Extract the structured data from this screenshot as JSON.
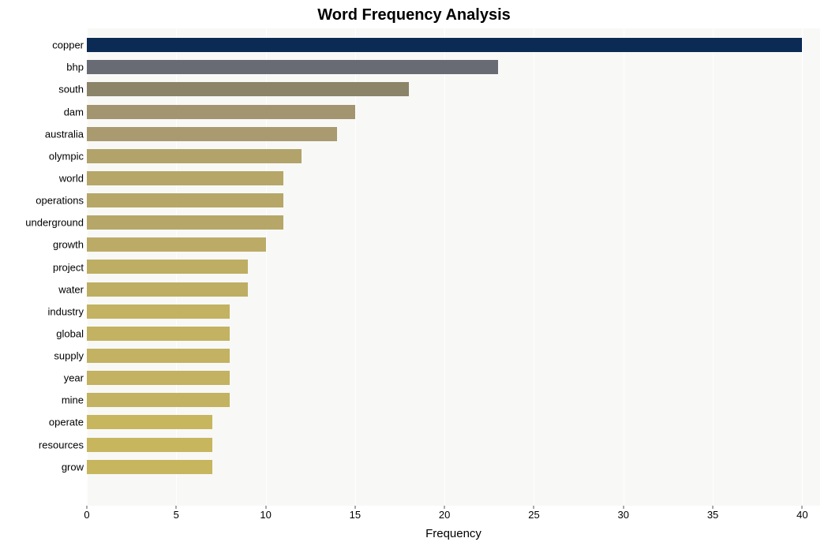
{
  "chart": {
    "type": "bar-horizontal",
    "title": "Word Frequency Analysis",
    "title_fontsize": 20,
    "title_fontweight": "bold",
    "xlabel": "Frequency",
    "xlabel_fontsize": 15,
    "background_color": "#ffffff",
    "plot_background_color": "#f8f8f6",
    "grid_color": "#ffffff",
    "tick_fontsize": 13,
    "ylabel_fontsize": 13,
    "xlim": [
      0,
      41
    ],
    "xtick_step": 5,
    "xticks": [
      0,
      5,
      10,
      15,
      20,
      25,
      30,
      35,
      40
    ],
    "bar_height_ratio": 0.64,
    "categories": [
      "copper",
      "bhp",
      "south",
      "dam",
      "australia",
      "olympic",
      "world",
      "operations",
      "underground",
      "growth",
      "project",
      "water",
      "industry",
      "global",
      "supply",
      "year",
      "mine",
      "operate",
      "resources",
      "grow"
    ],
    "values": [
      40,
      23,
      18,
      15,
      14,
      12,
      11,
      11,
      11,
      10,
      9,
      9,
      8,
      8,
      8,
      8,
      8,
      7,
      7,
      7
    ],
    "bar_colors": [
      "#0b2a54",
      "#686b73",
      "#8c8469",
      "#a29570",
      "#a99b6f",
      "#b2a36a",
      "#b6a768",
      "#b6a768",
      "#b6a768",
      "#bbab66",
      "#beae63",
      "#beae63",
      "#c2b261",
      "#c2b261",
      "#c2b261",
      "#c2b261",
      "#c2b261",
      "#c7b65e",
      "#c7b65e",
      "#c7b65e"
    ]
  }
}
